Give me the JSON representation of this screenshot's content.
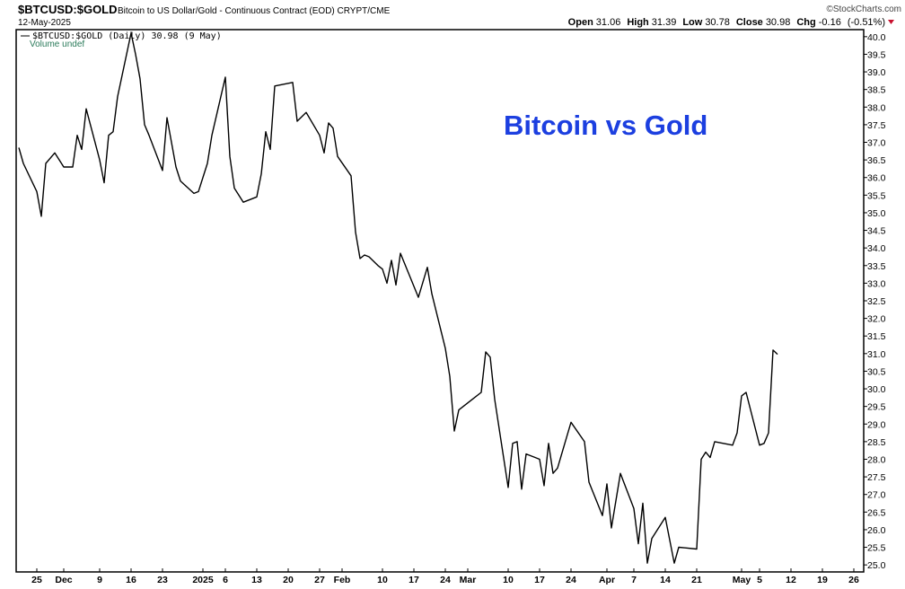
{
  "chart_data": {
    "type": "line",
    "symbol": "$BTCUSD:$GOLD",
    "title": "Bitcoin to US Dollar/Gold - Continuous Contract (EOD) CRYPT/CME",
    "date": "12-May-2025",
    "quote": [
      {
        "label": "Open",
        "value": 31.06
      },
      {
        "label": "High",
        "value": 31.39
      },
      {
        "label": "Low",
        "value": 30.78
      },
      {
        "label": "Close",
        "value": 30.98
      },
      {
        "label": "Chg",
        "value": -0.16
      }
    ],
    "change_pct": "(-0.51%)",
    "credit": "©StockCharts.com",
    "legend_label": "$BTCUSD:$GOLD (Daily) 30.98 (9 May)",
    "volume_note": "Volume undef",
    "annotation": "Bitcoin vs Gold",
    "color": "#000000",
    "x": [
      -4,
      -3,
      0,
      1,
      2,
      4,
      6,
      8,
      9,
      10,
      11,
      14,
      15,
      16,
      17,
      18,
      21,
      22,
      23,
      24,
      25,
      28,
      29,
      31,
      32,
      35,
      36,
      38,
      39,
      42,
      43,
      44,
      46,
      49,
      50,
      51,
      52,
      53,
      57,
      58,
      60,
      63,
      64,
      65,
      66,
      67,
      70,
      71,
      72,
      73,
      74,
      76,
      77,
      78,
      79,
      80,
      81,
      85,
      87,
      88,
      91,
      92,
      93,
      94,
      97,
      99,
      100,
      101,
      102,
      105,
      106,
      107,
      108,
      109,
      111,
      112,
      113,
      114,
      115,
      116,
      119,
      122,
      123,
      126,
      127,
      128,
      130,
      133,
      134,
      135,
      136,
      137,
      140,
      141,
      142,
      143,
      147,
      148,
      149,
      150,
      151,
      155,
      156,
      157,
      158,
      161,
      162,
      163,
      164,
      165
    ],
    "values": [
      36.85,
      36.4,
      35.6,
      34.9,
      36.4,
      36.7,
      36.3,
      36.3,
      37.2,
      36.8,
      37.95,
      36.5,
      35.85,
      37.2,
      37.3,
      38.3,
      40.1,
      39.5,
      38.8,
      37.5,
      37.2,
      36.2,
      37.7,
      36.3,
      35.9,
      35.55,
      35.6,
      36.4,
      37.2,
      38.85,
      36.6,
      35.7,
      35.3,
      35.45,
      36.1,
      37.3,
      36.8,
      38.6,
      38.7,
      37.6,
      37.85,
      37.2,
      36.7,
      37.55,
      37.4,
      36.6,
      36.05,
      34.45,
      33.7,
      33.8,
      33.75,
      33.5,
      33.4,
      33.0,
      33.65,
      32.95,
      33.85,
      32.6,
      33.45,
      32.7,
      31.15,
      30.35,
      28.8,
      29.4,
      29.7,
      29.9,
      31.05,
      30.9,
      29.7,
      27.2,
      28.45,
      28.5,
      27.15,
      28.15,
      28.05,
      28.0,
      27.25,
      28.45,
      27.6,
      27.75,
      29.05,
      28.5,
      27.35,
      26.4,
      27.3,
      26.05,
      27.6,
      26.6,
      25.6,
      26.75,
      25.05,
      25.75,
      26.35,
      25.7,
      25.05,
      25.5,
      25.45,
      28.0,
      28.2,
      28.05,
      28.5,
      28.4,
      28.75,
      29.8,
      29.9,
      28.4,
      28.45,
      28.75,
      31.1,
      30.98
    ],
    "xlim": [
      -4.6,
      184.2
    ],
    "xticks": [
      {
        "value": 0,
        "label": "25"
      },
      {
        "value": 6,
        "label": "Dec"
      },
      {
        "value": 14,
        "label": "9"
      },
      {
        "value": 21,
        "label": "16"
      },
      {
        "value": 28,
        "label": "23"
      },
      {
        "value": 37,
        "label": "2025"
      },
      {
        "value": 42,
        "label": "6"
      },
      {
        "value": 49,
        "label": "13"
      },
      {
        "value": 56,
        "label": "20"
      },
      {
        "value": 63,
        "label": "27"
      },
      {
        "value": 68,
        "label": "Feb"
      },
      {
        "value": 77,
        "label": "10"
      },
      {
        "value": 84,
        "label": "17"
      },
      {
        "value": 91,
        "label": "24"
      },
      {
        "value": 96,
        "label": "Mar"
      },
      {
        "value": 105,
        "label": "10"
      },
      {
        "value": 112,
        "label": "17"
      },
      {
        "value": 119,
        "label": "24"
      },
      {
        "value": 127,
        "label": "Apr"
      },
      {
        "value": 133,
        "label": "7"
      },
      {
        "value": 140,
        "label": "14"
      },
      {
        "value": 147,
        "label": "21"
      },
      {
        "value": 157,
        "label": "May"
      },
      {
        "value": 161,
        "label": "5"
      },
      {
        "value": 168,
        "label": "12"
      },
      {
        "value": 175,
        "label": "19"
      },
      {
        "value": 182,
        "label": "26"
      }
    ],
    "ylim": [
      24.8,
      40.2
    ],
    "yticks": [
      {
        "value": 25,
        "label": "25.0"
      },
      25.5,
      {
        "value": 26,
        "label": "26.0"
      },
      26.5,
      {
        "value": 27,
        "label": "27.0"
      },
      27.5,
      {
        "value": 28,
        "label": "28.0"
      },
      28.5,
      {
        "value": 29,
        "label": "29.0"
      },
      29.5,
      {
        "value": 30,
        "label": "30.0"
      },
      30.5,
      {
        "value": 31,
        "label": "31.0"
      },
      31.5,
      {
        "value": 32,
        "label": "32.0"
      },
      32.5,
      {
        "value": 33,
        "label": "33.0"
      },
      33.5,
      {
        "value": 34,
        "label": "34.0"
      },
      34.5,
      {
        "value": 35,
        "label": "35.0"
      },
      35.5,
      {
        "value": 36,
        "label": "36.0"
      },
      36.5,
      {
        "value": 37,
        "label": "37.0"
      },
      37.5,
      {
        "value": 38,
        "label": "38.0"
      },
      38.5,
      {
        "value": 39,
        "label": "39.0"
      },
      39.5,
      {
        "value": 40,
        "label": "40.0"
      }
    ]
  }
}
